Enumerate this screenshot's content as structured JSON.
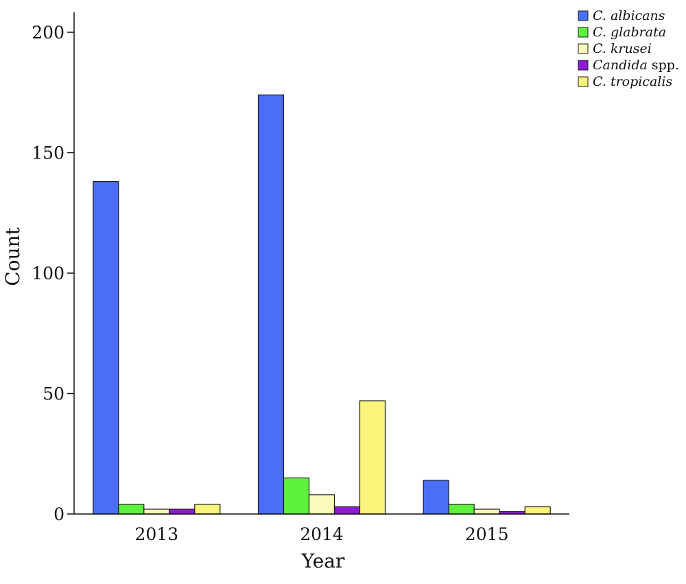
{
  "chart_data": {
    "type": "bar",
    "xlabel": "Year",
    "ylabel": "Count",
    "categories": [
      "2013",
      "2014",
      "2015"
    ],
    "ylim": [
      0,
      200
    ],
    "yticks": [
      0,
      50,
      100,
      150,
      200
    ],
    "legend_position": "top-right",
    "series": [
      {
        "name": "C. albicans",
        "legend_italic": "C. albicans",
        "legend_upright": "",
        "color": "#4a6ef5",
        "values": [
          138,
          174,
          14
        ]
      },
      {
        "name": "C. glabrata",
        "legend_italic": "C. glabrata",
        "legend_upright": "",
        "color": "#5cf23c",
        "values": [
          4,
          15,
          4
        ]
      },
      {
        "name": "C. krusei",
        "legend_italic": "C. krusei",
        "legend_upright": "",
        "color": "#fbfaba",
        "values": [
          2,
          8,
          2
        ]
      },
      {
        "name": "Candida spp.",
        "legend_italic": "Candida",
        "legend_upright": " spp.",
        "color": "#8c1ad6",
        "values": [
          2,
          3,
          1
        ]
      },
      {
        "name": "C. tropicalis",
        "legend_italic": "C. tropicalis",
        "legend_upright": "",
        "color": "#f8f57a",
        "values": [
          4,
          47,
          3
        ]
      }
    ]
  }
}
